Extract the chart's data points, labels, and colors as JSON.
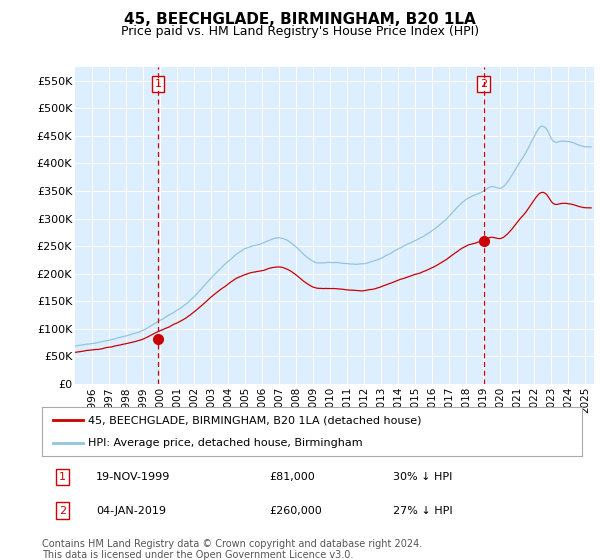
{
  "title": "45, BEECHGLADE, BIRMINGHAM, B20 1LA",
  "subtitle": "Price paid vs. HM Land Registry's House Price Index (HPI)",
  "legend_line1": "45, BEECHGLADE, BIRMINGHAM, B20 1LA (detached house)",
  "legend_line2": "HPI: Average price, detached house, Birmingham",
  "annotation1_label": "1",
  "annotation1_date": "19-NOV-1999",
  "annotation1_price": "£81,000",
  "annotation1_hpi": "30% ↓ HPI",
  "annotation2_label": "2",
  "annotation2_date": "04-JAN-2019",
  "annotation2_price": "£260,000",
  "annotation2_hpi": "27% ↓ HPI",
  "footer": "Contains HM Land Registry data © Crown copyright and database right 2024.\nThis data is licensed under the Open Government Licence v3.0.",
  "sale1_x": 1999.88,
  "sale1_y": 81000,
  "sale2_x": 2019.01,
  "sale2_y": 260000,
  "hpi_color": "#92c5de",
  "price_color": "#cc0000",
  "vline_color": "#cc0000",
  "background_color": "#ffffff",
  "plot_bg_color": "#ddeeff",
  "grid_color": "#ffffff",
  "ylim_max": 575000,
  "yticks": [
    0,
    50000,
    100000,
    150000,
    200000,
    250000,
    300000,
    350000,
    400000,
    450000,
    500000,
    550000
  ],
  "xlim_min": 1995.0,
  "xlim_max": 2025.5
}
